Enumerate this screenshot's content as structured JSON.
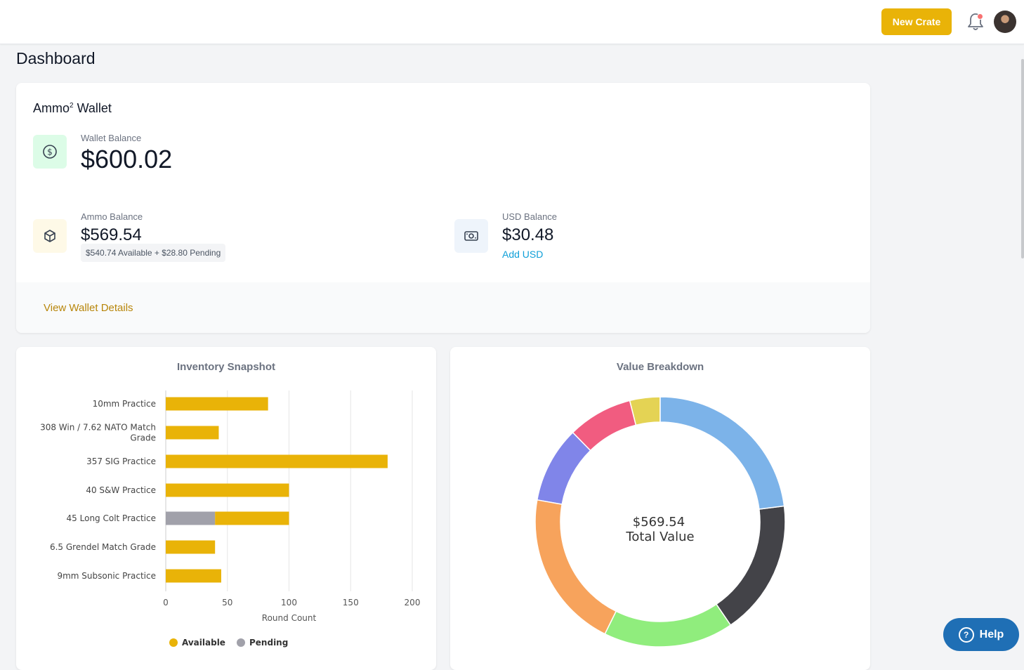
{
  "header": {
    "new_crate_label": "New Crate"
  },
  "page_title": "Dashboard",
  "wallet": {
    "title": "Ammo",
    "title_sup": "2",
    "title_suffix": " Wallet",
    "wallet_balance_label": "Wallet Balance",
    "wallet_balance": "$600.02",
    "ammo_balance_label": "Ammo Balance",
    "ammo_balance": "$569.54",
    "ammo_breakdown": "$540.74 Available + $28.80 Pending",
    "usd_balance_label": "USD Balance",
    "usd_balance": "$30.48",
    "add_usd_label": "Add USD",
    "view_details_label": "View Wallet Details"
  },
  "inventory": {
    "title": "Inventory Snapshot"
  },
  "value": {
    "title": "Value Breakdown",
    "center_value": "$569.54",
    "center_label": "Total Value"
  },
  "help": {
    "label": "Help"
  },
  "colors": {
    "accent": "#e9b308",
    "pending": "#9ca3af",
    "link": "#0e9fd8",
    "help": "#1f6fb5"
  },
  "chart_data": [
    {
      "type": "bar",
      "orientation": "horizontal",
      "stacked": true,
      "title": "Inventory Snapshot",
      "xlabel": "Round Count",
      "ylabel": "",
      "xlim": [
        0,
        200
      ],
      "xticks": [
        0,
        50,
        100,
        150,
        200
      ],
      "grid": true,
      "legend_position": "bottom",
      "categories": [
        "10mm Practice",
        "308 Win / 7.62 NATO Match Grade",
        "357 SIG Practice",
        "40 S&W Practice",
        "45 Long Colt Practice",
        "6.5 Grendel Match Grade",
        "9mm Subsonic Practice"
      ],
      "series": [
        {
          "name": "Pending",
          "color": "#a1a1aa",
          "values": [
            0,
            0,
            0,
            0,
            40,
            0,
            0
          ]
        },
        {
          "name": "Available",
          "color": "#e9b308",
          "values": [
            83,
            43,
            180,
            100,
            60,
            40,
            45
          ]
        }
      ]
    },
    {
      "type": "pie",
      "donut": true,
      "title": "Value Breakdown",
      "center_text": [
        "$569.54",
        "Total Value"
      ],
      "slices": [
        {
          "value": 20.5,
          "color": "#7cb3e9"
        },
        {
          "value": 15.6,
          "color": "#434348"
        },
        {
          "value": 15.0,
          "color": "#90ed7d"
        },
        {
          "value": 18.3,
          "color": "#f7a35c"
        },
        {
          "value": 8.8,
          "color": "#8085e9"
        },
        {
          "value": 7.5,
          "color": "#f15c80"
        },
        {
          "value": 3.5,
          "color": "#e4d354"
        }
      ]
    }
  ]
}
